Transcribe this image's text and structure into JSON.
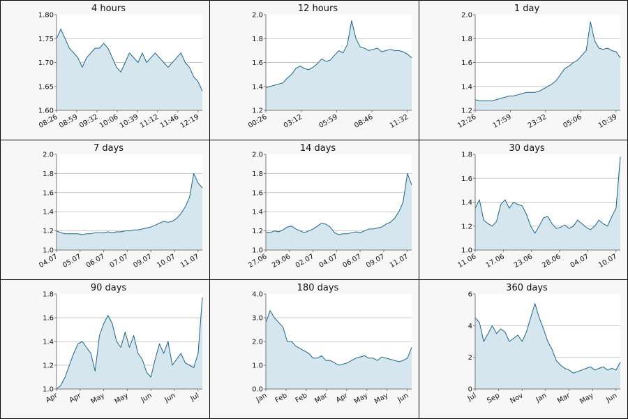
{
  "colors": {
    "line": "#1a6584",
    "fill": "#d6e6ee",
    "grid": "#c8c8c8",
    "panel_bg": "#f7f7f7"
  },
  "chart_data": [
    {
      "type": "area",
      "title": "4 hours",
      "ylim": [
        1.6,
        1.8
      ],
      "yticks": [
        "1.60",
        "1.65",
        "1.70",
        "1.75",
        "1.80"
      ],
      "xticks": [
        "08:26",
        "08:59",
        "09:32",
        "10:06",
        "10:39",
        "11:12",
        "11:46",
        "12:19"
      ],
      "grid": true,
      "series": [
        {
          "values": [
            1.75,
            1.77,
            1.75,
            1.73,
            1.72,
            1.71,
            1.69,
            1.71,
            1.72,
            1.73,
            1.73,
            1.74,
            1.73,
            1.71,
            1.69,
            1.68,
            1.7,
            1.72,
            1.71,
            1.7,
            1.72,
            1.7,
            1.71,
            1.72,
            1.71,
            1.7,
            1.69,
            1.7,
            1.71,
            1.72,
            1.7,
            1.69,
            1.67,
            1.66,
            1.64
          ]
        }
      ]
    },
    {
      "type": "area",
      "title": "12 hours",
      "ylim": [
        1.2,
        2.0
      ],
      "yticks": [
        "1.2",
        "1.4",
        "1.6",
        "1.8",
        "2.0"
      ],
      "xticks": [
        "00:26",
        "03:12",
        "05:59",
        "08:46",
        "11:32"
      ],
      "grid": true,
      "series": [
        {
          "values": [
            1.39,
            1.4,
            1.41,
            1.42,
            1.43,
            1.47,
            1.5,
            1.55,
            1.57,
            1.55,
            1.54,
            1.56,
            1.59,
            1.63,
            1.61,
            1.62,
            1.66,
            1.7,
            1.68,
            1.75,
            1.95,
            1.8,
            1.73,
            1.72,
            1.7,
            1.71,
            1.72,
            1.69,
            1.7,
            1.71,
            1.7,
            1.7,
            1.69,
            1.67,
            1.64
          ]
        }
      ]
    },
    {
      "type": "area",
      "title": "1 day",
      "ylim": [
        1.2,
        2.0
      ],
      "yticks": [
        "1.2",
        "1.4",
        "1.6",
        "1.8",
        "2.0"
      ],
      "xticks": [
        "12:26",
        "17:59",
        "23:32",
        "05:06",
        "10:39"
      ],
      "grid": true,
      "series": [
        {
          "values": [
            1.29,
            1.28,
            1.28,
            1.28,
            1.28,
            1.29,
            1.3,
            1.31,
            1.32,
            1.32,
            1.33,
            1.34,
            1.35,
            1.35,
            1.35,
            1.36,
            1.38,
            1.4,
            1.42,
            1.45,
            1.5,
            1.55,
            1.57,
            1.6,
            1.62,
            1.66,
            1.7,
            1.94,
            1.78,
            1.72,
            1.71,
            1.72,
            1.7,
            1.69,
            1.64
          ]
        }
      ]
    },
    {
      "type": "area",
      "title": "7 days",
      "ylim": [
        1.0,
        2.0
      ],
      "yticks": [
        "1.0",
        "1.2",
        "1.4",
        "1.6",
        "1.8",
        "2.0"
      ],
      "xticks": [
        "04.07",
        "05.07",
        "06.07",
        "07.07",
        "09.07",
        "10.07",
        "11.07"
      ],
      "grid": true,
      "series": [
        {
          "values": [
            1.2,
            1.18,
            1.17,
            1.17,
            1.17,
            1.17,
            1.16,
            1.17,
            1.17,
            1.18,
            1.18,
            1.18,
            1.19,
            1.18,
            1.19,
            1.19,
            1.2,
            1.2,
            1.21,
            1.21,
            1.22,
            1.23,
            1.24,
            1.26,
            1.28,
            1.3,
            1.29,
            1.3,
            1.33,
            1.38,
            1.45,
            1.55,
            1.8,
            1.7,
            1.65
          ]
        }
      ]
    },
    {
      "type": "area",
      "title": "14 days",
      "ylim": [
        1.0,
        2.0
      ],
      "yticks": [
        "1.0",
        "1.2",
        "1.4",
        "1.6",
        "1.8",
        "2.0"
      ],
      "xticks": [
        "27.06",
        "29.06",
        "02.07",
        "04.07",
        "06.07",
        "09.07",
        "11.07"
      ],
      "grid": true,
      "series": [
        {
          "values": [
            1.19,
            1.18,
            1.2,
            1.19,
            1.21,
            1.24,
            1.25,
            1.22,
            1.2,
            1.18,
            1.2,
            1.22,
            1.25,
            1.28,
            1.27,
            1.24,
            1.18,
            1.16,
            1.17,
            1.17,
            1.18,
            1.19,
            1.18,
            1.2,
            1.22,
            1.22,
            1.23,
            1.24,
            1.27,
            1.29,
            1.33,
            1.4,
            1.5,
            1.8,
            1.68
          ]
        }
      ]
    },
    {
      "type": "area",
      "title": "30 days",
      "ylim": [
        1.0,
        1.8
      ],
      "yticks": [
        "1.0",
        "1.2",
        "1.4",
        "1.6",
        "1.8"
      ],
      "xticks": [
        "11.06",
        "17.06",
        "23.06",
        "28.06",
        "04.07",
        "10.07"
      ],
      "grid": true,
      "series": [
        {
          "values": [
            1.35,
            1.42,
            1.25,
            1.22,
            1.2,
            1.24,
            1.38,
            1.42,
            1.35,
            1.4,
            1.38,
            1.37,
            1.3,
            1.2,
            1.14,
            1.2,
            1.27,
            1.28,
            1.22,
            1.18,
            1.19,
            1.21,
            1.18,
            1.2,
            1.25,
            1.22,
            1.19,
            1.17,
            1.2,
            1.25,
            1.22,
            1.2,
            1.28,
            1.35,
            1.78
          ]
        }
      ]
    },
    {
      "type": "area",
      "title": "90 days",
      "ylim": [
        1.0,
        1.8
      ],
      "yticks": [
        "1.0",
        "1.2",
        "1.4",
        "1.6",
        "1.8"
      ],
      "xticks": [
        "Apr",
        "Apr",
        "May",
        "May",
        "Jun",
        "Jun",
        "Jul"
      ],
      "grid": true,
      "series": [
        {
          "values": [
            1.0,
            1.03,
            1.1,
            1.2,
            1.3,
            1.38,
            1.4,
            1.35,
            1.3,
            1.15,
            1.45,
            1.55,
            1.62,
            1.55,
            1.4,
            1.35,
            1.48,
            1.35,
            1.45,
            1.3,
            1.25,
            1.14,
            1.1,
            1.25,
            1.38,
            1.3,
            1.4,
            1.2,
            1.25,
            1.3,
            1.22,
            1.2,
            1.18,
            1.3,
            1.77
          ]
        }
      ]
    },
    {
      "type": "area",
      "title": "180 days",
      "ylim": [
        0.0,
        4.0
      ],
      "yticks": [
        "0.0",
        "1.0",
        "2.0",
        "3.0",
        "4.0"
      ],
      "xticks": [
        "Jan",
        "Feb",
        "Feb",
        "Mar",
        "Apr",
        "May",
        "May",
        "Jun"
      ],
      "grid": true,
      "series": [
        {
          "values": [
            2.8,
            3.3,
            3.0,
            2.8,
            2.6,
            2.0,
            2.0,
            1.8,
            1.7,
            1.6,
            1.5,
            1.3,
            1.3,
            1.4,
            1.2,
            1.2,
            1.1,
            1.0,
            1.05,
            1.1,
            1.2,
            1.3,
            1.35,
            1.4,
            1.3,
            1.3,
            1.2,
            1.35,
            1.3,
            1.25,
            1.2,
            1.15,
            1.2,
            1.3,
            1.75
          ]
        }
      ]
    },
    {
      "type": "area",
      "title": "360 days",
      "ylim": [
        0,
        6
      ],
      "yticks": [
        "0",
        "2",
        "4",
        "6"
      ],
      "xticks": [
        "Jul",
        "Sep",
        "Nov",
        "Jan",
        "Mar",
        "May",
        "Jun"
      ],
      "grid": true,
      "series": [
        {
          "values": [
            4.5,
            4.2,
            3.0,
            3.5,
            4.0,
            3.5,
            3.8,
            3.6,
            3.0,
            3.2,
            3.4,
            3.0,
            3.6,
            4.5,
            5.4,
            4.5,
            3.8,
            3.0,
            2.5,
            1.8,
            1.5,
            1.3,
            1.2,
            1.0,
            1.1,
            1.2,
            1.3,
            1.4,
            1.2,
            1.3,
            1.4,
            1.2,
            1.3,
            1.2,
            1.7
          ]
        }
      ]
    }
  ]
}
